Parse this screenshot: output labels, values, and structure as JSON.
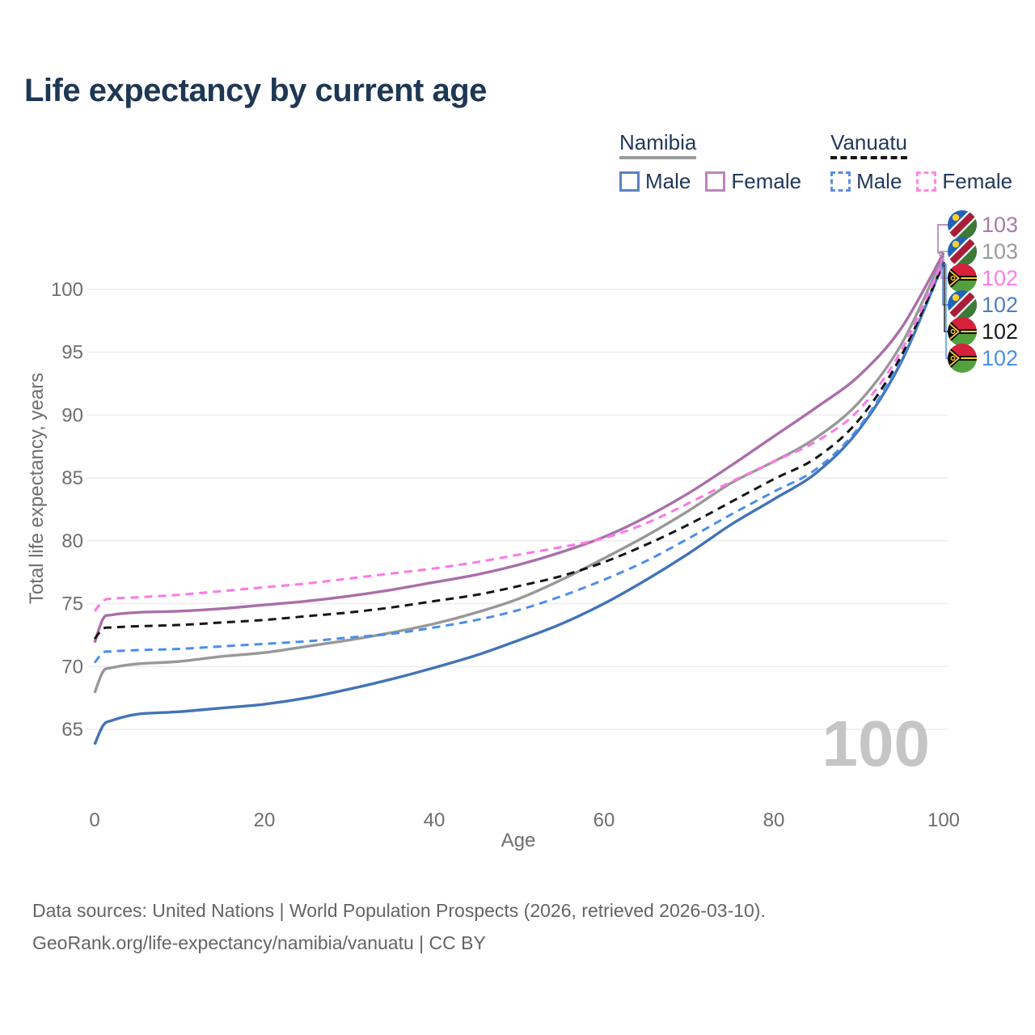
{
  "title": "Life expectancy by current age",
  "legend": {
    "groups": [
      {
        "country": "Namibia",
        "line_color": "#9a9a9a",
        "line_dashed": false,
        "items": [
          {
            "label": "Male",
            "color": "#5a82c0",
            "dashed": false
          },
          {
            "label": "Female",
            "color": "#bd84bd",
            "dashed": false
          }
        ]
      },
      {
        "country": "Vanuatu",
        "line_color": "#151515",
        "line_dashed": true,
        "items": [
          {
            "label": "Male",
            "color": "#5a8fe8",
            "dashed": true
          },
          {
            "label": "Female",
            "color": "#ff86e8",
            "dashed": true
          }
        ]
      }
    ]
  },
  "chart_data": {
    "type": "line",
    "title": "Life expectancy by current age",
    "xlabel": "Age",
    "ylabel": "Total life expectancy, years",
    "x_ticks": [
      0,
      20,
      40,
      60,
      80,
      100
    ],
    "y_ticks": [
      65,
      70,
      75,
      80,
      85,
      90,
      95,
      100
    ],
    "xlim": [
      0,
      100
    ],
    "ylim": [
      63,
      104.5
    ],
    "grid": "horizontal",
    "legend_position": "top-right",
    "watermark": "100",
    "x": [
      0,
      1,
      2,
      5,
      10,
      15,
      20,
      25,
      30,
      35,
      40,
      45,
      50,
      55,
      60,
      65,
      70,
      75,
      80,
      85,
      90,
      95,
      100
    ],
    "series": [
      {
        "name": "Namibia Male",
        "color": "#4273b8",
        "dashed": false,
        "end_label": "102",
        "values": [
          63.8,
          65.3,
          65.7,
          66.2,
          66.4,
          66.7,
          67.0,
          67.5,
          68.2,
          69.0,
          69.9,
          70.9,
          72.1,
          73.4,
          75.0,
          76.9,
          79.0,
          81.3,
          83.3,
          85.4,
          88.8,
          94.2,
          102.2
        ]
      },
      {
        "name": "Namibia Female",
        "color": "#a96fa9",
        "dashed": false,
        "end_label": "103",
        "values": [
          71.9,
          73.8,
          74.1,
          74.3,
          74.4,
          74.6,
          74.9,
          75.2,
          75.6,
          76.1,
          76.7,
          77.3,
          78.1,
          79.1,
          80.3,
          81.9,
          83.8,
          86.0,
          88.3,
          90.6,
          93.1,
          96.9,
          102.9
        ]
      },
      {
        "name": "Namibia",
        "color": "#989898",
        "dashed": false,
        "end_label": "103",
        "values": [
          67.9,
          69.6,
          69.9,
          70.2,
          70.4,
          70.8,
          71.1,
          71.6,
          72.1,
          72.7,
          73.4,
          74.3,
          75.4,
          76.9,
          78.6,
          80.4,
          82.4,
          84.6,
          86.3,
          88.2,
          91.0,
          95.6,
          102.7
        ]
      },
      {
        "name": "Vanuatu Male",
        "color": "#4a8ee9",
        "dashed": true,
        "end_label": "102",
        "values": [
          70.3,
          71.1,
          71.2,
          71.3,
          71.4,
          71.6,
          71.8,
          72.0,
          72.3,
          72.6,
          73.1,
          73.7,
          74.5,
          75.6,
          76.9,
          78.4,
          80.2,
          82.1,
          83.9,
          85.7,
          89.0,
          94.4,
          102.0
        ]
      },
      {
        "name": "Vanuatu Female",
        "color": "#fc78e6",
        "dashed": true,
        "end_label": "102",
        "values": [
          74.4,
          75.2,
          75.4,
          75.5,
          75.7,
          76.0,
          76.3,
          76.6,
          77.0,
          77.4,
          77.8,
          78.3,
          78.9,
          79.5,
          80.2,
          81.4,
          83.0,
          84.7,
          86.3,
          87.9,
          90.4,
          95.1,
          102.4
        ]
      },
      {
        "name": "Vanuatu",
        "color": "#151515",
        "dashed": true,
        "end_label": "102",
        "values": [
          72.2,
          73.0,
          73.1,
          73.2,
          73.3,
          73.5,
          73.7,
          74.0,
          74.3,
          74.7,
          75.2,
          75.7,
          76.4,
          77.2,
          78.3,
          79.7,
          81.3,
          83.1,
          84.9,
          86.6,
          89.6,
          94.7,
          102.1
        ]
      }
    ]
  },
  "end_labels": [
    {
      "series": "Namibia Female",
      "flag": "namibia",
      "value": "103",
      "color": "#a77ba8"
    },
    {
      "series": "Namibia",
      "flag": "namibia",
      "value": "103",
      "color": "#9a9a9a"
    },
    {
      "series": "Vanuatu Female",
      "flag": "vanuatu",
      "value": "102",
      "color": "#fd7fe3"
    },
    {
      "series": "Namibia Male",
      "flag": "namibia",
      "value": "102",
      "color": "#4f7ec0"
    },
    {
      "series": "Vanuatu",
      "flag": "vanuatu",
      "value": "102",
      "color": "#1b1b1b"
    },
    {
      "series": "Vanuatu Male",
      "flag": "vanuatu",
      "value": "102",
      "color": "#4a90e6"
    }
  ],
  "footer": {
    "line1": "Data sources: United Nations | World Population Prospects (2026, retrieved 2026-03-10).",
    "line2": "GeoRank.org/life-expectancy/namibia/vanuatu | CC BY"
  }
}
